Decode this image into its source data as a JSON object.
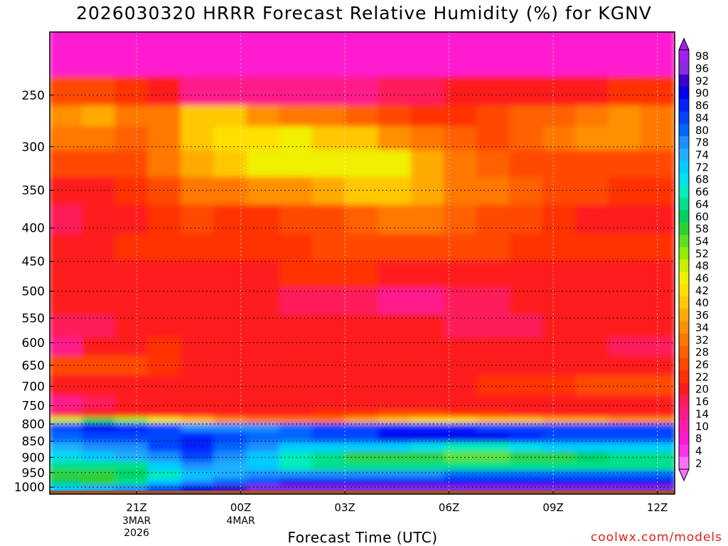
{
  "title": "2026030320 HRRR Forecast Relative Humidity (%) for KGNV",
  "xlabel": "Forecast Time (UTC)",
  "credit": "coolwx.com/models",
  "chart_data": {
    "type": "heatmap",
    "title": "2026030320 HRRR Forecast Relative Humidity (%) for KGNV",
    "xlabel": "Forecast Time (UTC)",
    "ylabel": "",
    "x_start_hour": -1.5,
    "x_end_hour": 16.5,
    "x_ticks": [
      {
        "hour": 1,
        "label": "21Z",
        "sub": [
          "3MAR",
          "2026"
        ]
      },
      {
        "hour": 4,
        "label": "00Z",
        "sub": [
          "4MAR"
        ]
      },
      {
        "hour": 7,
        "label": "03Z",
        "sub": []
      },
      {
        "hour": 10,
        "label": "06Z",
        "sub": []
      },
      {
        "hour": 13,
        "label": "09Z",
        "sub": []
      },
      {
        "hour": 16,
        "label": "12Z",
        "sub": []
      }
    ],
    "y_scale": "log",
    "ylim": [
      1025,
      200
    ],
    "y_ticks": [
      250,
      300,
      350,
      400,
      450,
      500,
      550,
      600,
      650,
      700,
      750,
      800,
      850,
      900,
      950,
      1000
    ],
    "grid": true,
    "colorbar": {
      "labels": [
        98,
        96,
        92,
        90,
        86,
        84,
        80,
        78,
        74,
        72,
        68,
        66,
        64,
        60,
        58,
        54,
        52,
        48,
        46,
        42,
        40,
        36,
        34,
        32,
        28,
        26,
        22,
        20,
        16,
        14,
        10,
        8,
        4,
        2
      ],
      "colors": [
        "#a020f0",
        "#8a2be2",
        "#3a00d0",
        "#0000ee",
        "#0022ff",
        "#0044ff",
        "#0066ff",
        "#1e8fff",
        "#1eb0ff",
        "#00ccff",
        "#00e0ee",
        "#00eebb",
        "#00e08a",
        "#00d060",
        "#30d030",
        "#60e020",
        "#90f000",
        "#c8f000",
        "#f0f000",
        "#ffe000",
        "#ffc800",
        "#ffaa00",
        "#ff9000",
        "#ff7800",
        "#ff6000",
        "#ff4800",
        "#ff3000",
        "#ff1a1a",
        "#ff1a5a",
        "#ff1a8a",
        "#ff1ab0",
        "#ff1ad0",
        "#ff30f0",
        "#ff70ff"
      ]
    },
    "rows": [
      {
        "p": 220,
        "rh": [
          6,
          6,
          5,
          6,
          5,
          6,
          7,
          6,
          5,
          6,
          7,
          6,
          5,
          6,
          5,
          6,
          6,
          6,
          6
        ]
      },
      {
        "p": 250,
        "rh": [
          24,
          24,
          22,
          20,
          14,
          12,
          12,
          12,
          12,
          14,
          16,
          16,
          18,
          20,
          20,
          20,
          20,
          22,
          22
        ]
      },
      {
        "p": 270,
        "rh": [
          34,
          36,
          30,
          30,
          38,
          38,
          34,
          32,
          30,
          28,
          24,
          22,
          22,
          26,
          28,
          28,
          32,
          34,
          32
        ]
      },
      {
        "p": 290,
        "rh": [
          30,
          30,
          28,
          30,
          38,
          42,
          42,
          44,
          40,
          38,
          34,
          30,
          28,
          26,
          28,
          30,
          34,
          34,
          30
        ]
      },
      {
        "p": 320,
        "rh": [
          24,
          24,
          26,
          30,
          36,
          40,
          44,
          44,
          44,
          46,
          44,
          36,
          30,
          28,
          26,
          26,
          26,
          26,
          24
        ]
      },
      {
        "p": 350,
        "rh": [
          20,
          20,
          22,
          24,
          30,
          32,
          34,
          34,
          36,
          38,
          38,
          36,
          32,
          30,
          28,
          26,
          24,
          22,
          22
        ]
      },
      {
        "p": 390,
        "rh": [
          16,
          18,
          20,
          22,
          24,
          22,
          22,
          24,
          26,
          28,
          30,
          30,
          28,
          26,
          24,
          22,
          20,
          18,
          18
        ]
      },
      {
        "p": 430,
        "rh": [
          20,
          20,
          22,
          22,
          22,
          22,
          22,
          22,
          24,
          24,
          24,
          26,
          24,
          24,
          22,
          22,
          22,
          22,
          22
        ]
      },
      {
        "p": 470,
        "rh": [
          18,
          18,
          20,
          20,
          20,
          20,
          20,
          22,
          22,
          22,
          20,
          20,
          20,
          20,
          20,
          18,
          18,
          18,
          18
        ]
      },
      {
        "p": 520,
        "rh": [
          20,
          20,
          20,
          20,
          18,
          18,
          18,
          16,
          16,
          16,
          14,
          14,
          16,
          16,
          18,
          18,
          18,
          18,
          18
        ]
      },
      {
        "p": 570,
        "rh": [
          16,
          16,
          18,
          18,
          18,
          18,
          18,
          18,
          18,
          18,
          18,
          18,
          16,
          16,
          16,
          18,
          18,
          18,
          18
        ]
      },
      {
        "p": 610,
        "rh": [
          14,
          18,
          20,
          22,
          20,
          20,
          20,
          20,
          20,
          20,
          20,
          20,
          20,
          20,
          20,
          20,
          18,
          16,
          16
        ]
      },
      {
        "p": 650,
        "rh": [
          24,
          24,
          24,
          22,
          20,
          20,
          20,
          20,
          20,
          20,
          20,
          20,
          20,
          20,
          20,
          20,
          20,
          20,
          20
        ]
      },
      {
        "p": 700,
        "rh": [
          20,
          20,
          20,
          20,
          20,
          20,
          20,
          20,
          20,
          20,
          20,
          20,
          20,
          22,
          22,
          22,
          24,
          24,
          26
        ]
      },
      {
        "p": 750,
        "rh": [
          14,
          16,
          18,
          18,
          18,
          18,
          18,
          18,
          18,
          18,
          20,
          20,
          18,
          18,
          18,
          18,
          18,
          18,
          18
        ]
      },
      {
        "p": 775,
        "rh": [
          16,
          18,
          20,
          20,
          20,
          20,
          20,
          20,
          22,
          22,
          24,
          24,
          22,
          22,
          20,
          20,
          20,
          20,
          20
        ]
      },
      {
        "p": 790,
        "rh": [
          48,
          56,
          52,
          46,
          40,
          34,
          32,
          30,
          32,
          36,
          40,
          42,
          42,
          40,
          38,
          36,
          36,
          34,
          34
        ]
      },
      {
        "p": 810,
        "rh": [
          84,
          88,
          86,
          82,
          78,
          76,
          78,
          80,
          82,
          84,
          86,
          86,
          86,
          84,
          82,
          82,
          82,
          82,
          82
        ]
      },
      {
        "p": 840,
        "rh": [
          80,
          82,
          82,
          84,
          86,
          82,
          80,
          80,
          82,
          84,
          88,
          90,
          90,
          88,
          86,
          84,
          84,
          84,
          84
        ]
      },
      {
        "p": 870,
        "rh": [
          74,
          76,
          78,
          82,
          86,
          80,
          76,
          72,
          72,
          72,
          70,
          68,
          66,
          66,
          68,
          70,
          72,
          72,
          72
        ]
      },
      {
        "p": 900,
        "rh": [
          68,
          70,
          74,
          78,
          84,
          78,
          72,
          66,
          62,
          58,
          58,
          58,
          54,
          54,
          56,
          58,
          60,
          62,
          62
        ]
      },
      {
        "p": 930,
        "rh": [
          62,
          62,
          64,
          70,
          78,
          74,
          70,
          66,
          64,
          62,
          62,
          62,
          62,
          62,
          62,
          62,
          62,
          62,
          62
        ]
      },
      {
        "p": 960,
        "rh": [
          56,
          56,
          60,
          66,
          72,
          74,
          76,
          78,
          78,
          78,
          78,
          78,
          80,
          80,
          80,
          80,
          80,
          80,
          80
        ]
      },
      {
        "p": 985,
        "rh": [
          60,
          58,
          64,
          70,
          76,
          80,
          84,
          88,
          88,
          90,
          90,
          90,
          90,
          90,
          90,
          90,
          90,
          90,
          90
        ]
      },
      {
        "p": 1005,
        "rh": [
          72,
          74,
          78,
          84,
          88,
          92,
          94,
          96,
          96,
          96,
          96,
          96,
          96,
          96,
          96,
          96,
          96,
          96,
          96
        ]
      }
    ],
    "surface_below_hpa": 1012
  }
}
